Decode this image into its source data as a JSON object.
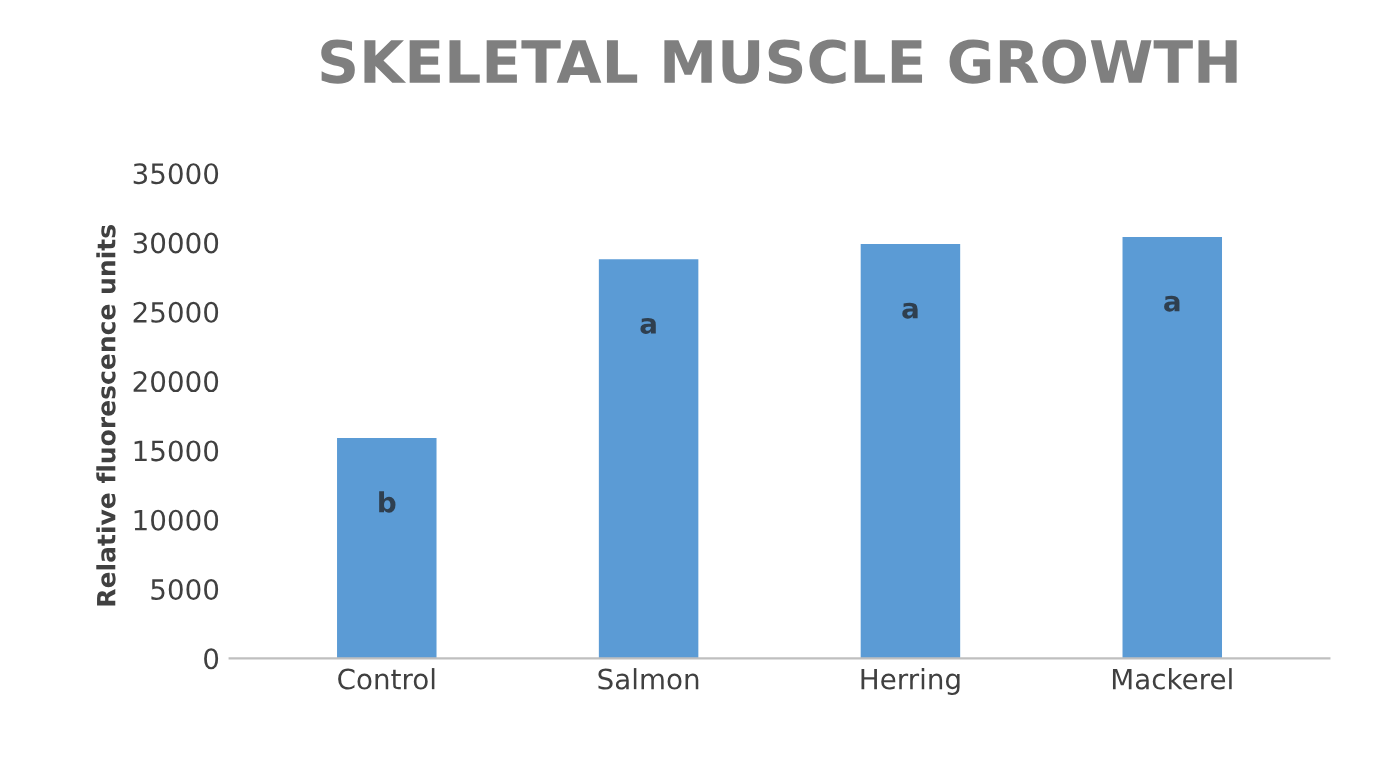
{
  "chart_data": {
    "type": "bar",
    "title": "SKELETAL MUSCLE GROWTH",
    "ylabel": "Relative fluorescence units",
    "categories": [
      "Control",
      "Salmon",
      "Herring",
      "Mackerel"
    ],
    "values": [
      15900,
      28800,
      29900,
      30400
    ],
    "color": "#5b9bd5",
    "ylim": [
      0,
      35000
    ],
    "yticks": [
      0,
      5000,
      10000,
      15000,
      20000,
      25000,
      30000,
      35000
    ],
    "grid": false,
    "annotations": [
      "b",
      "a",
      "a",
      "a"
    ]
  }
}
